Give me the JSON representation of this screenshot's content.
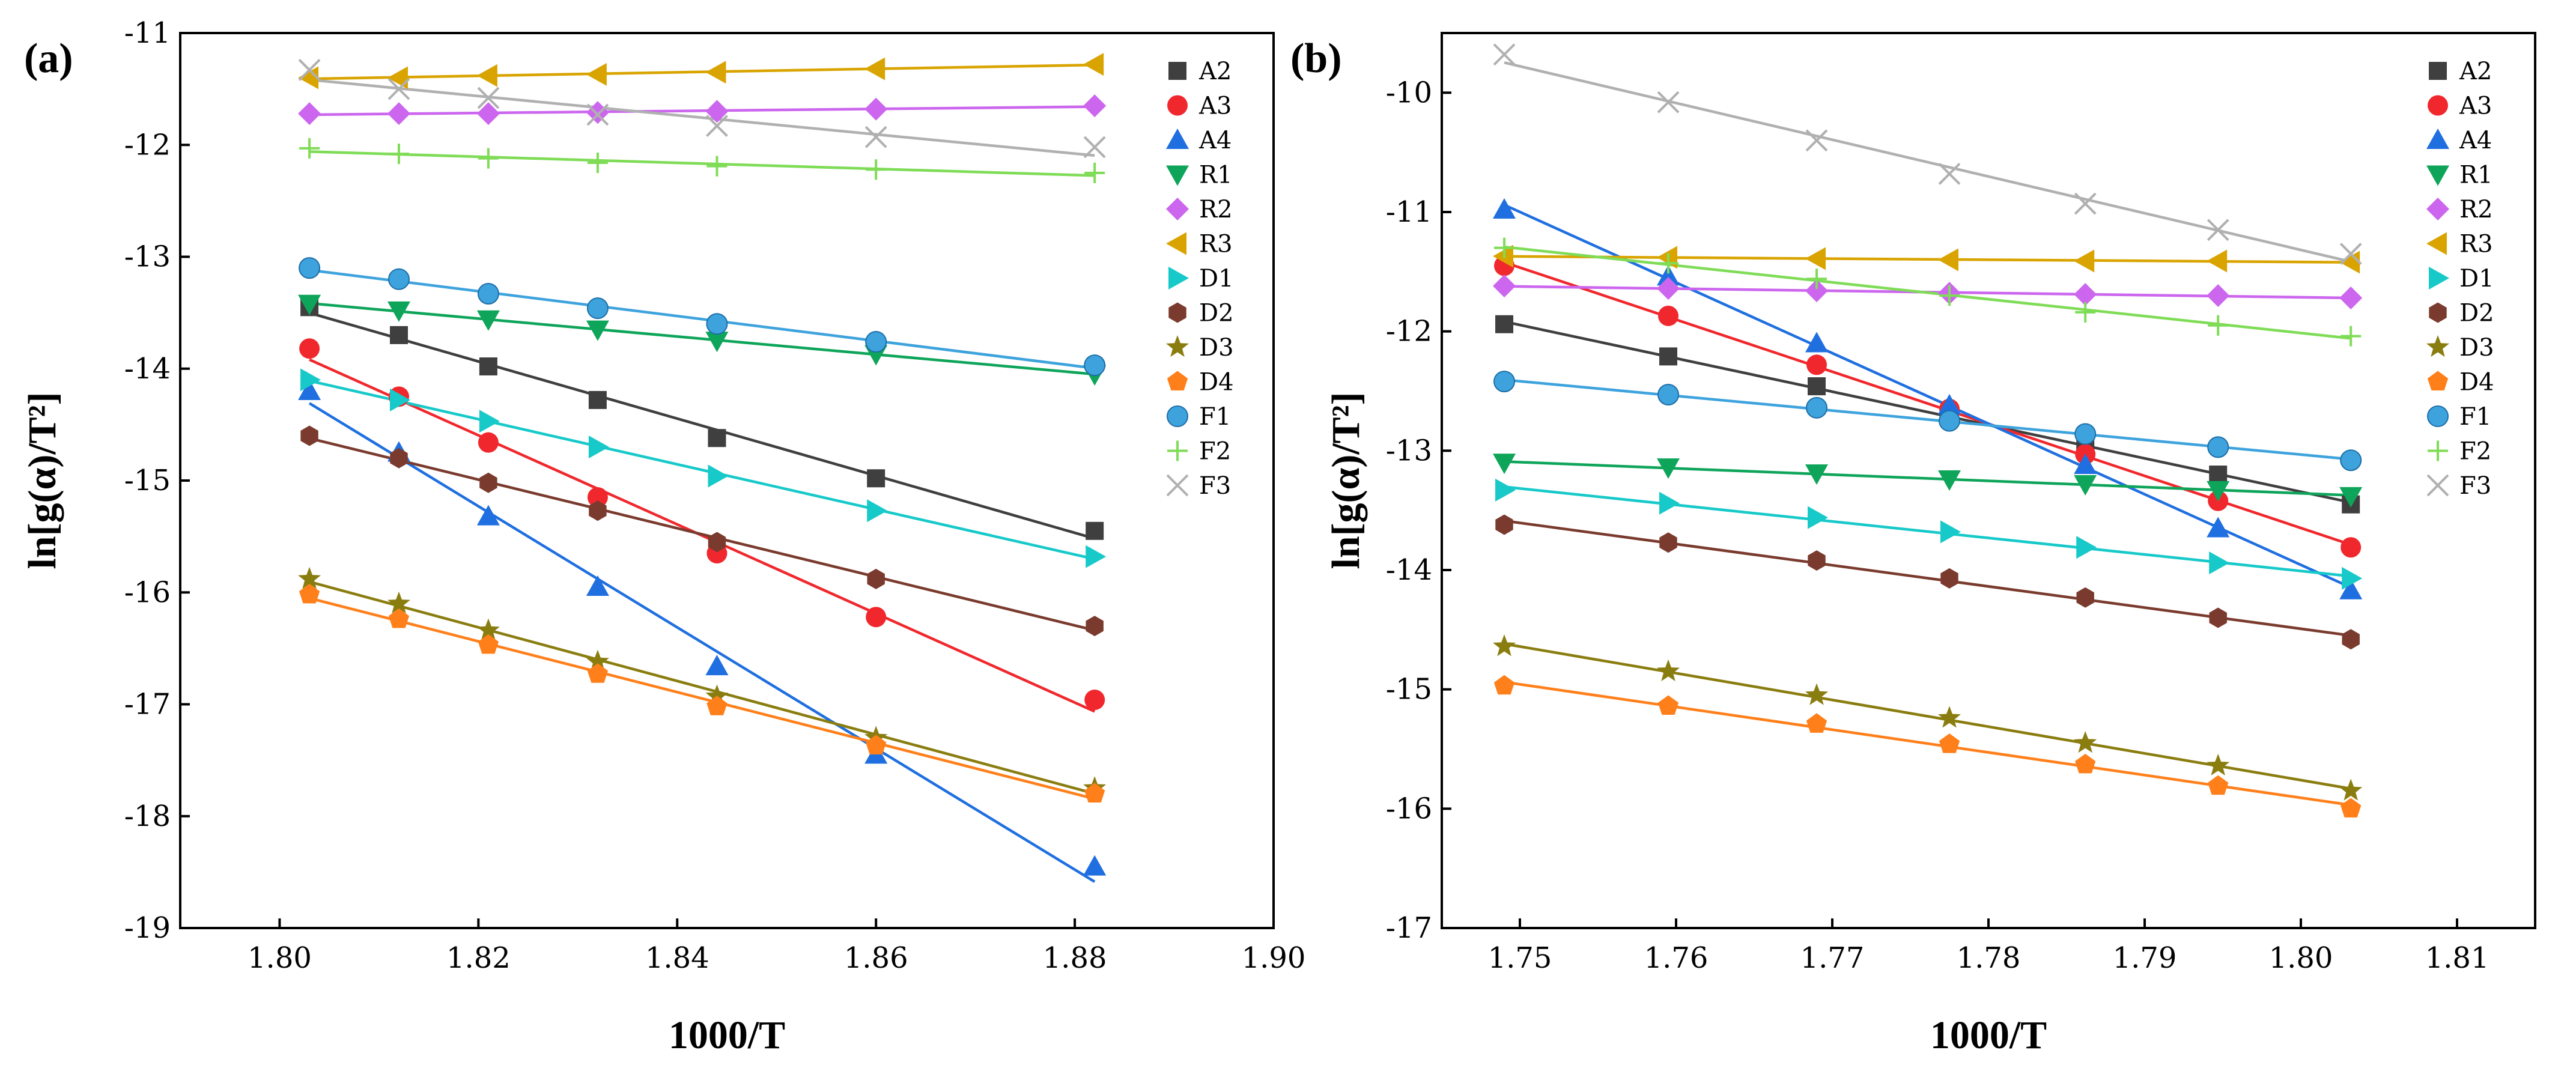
{
  "series_styles": {
    "A2": {
      "color": "#3f3f3f",
      "marker": "square"
    },
    "A3": {
      "color": "#f0282d",
      "marker": "circle"
    },
    "A4": {
      "color": "#1f6fe0",
      "marker": "triangle-up"
    },
    "R1": {
      "color": "#0ea55a",
      "marker": "triangle-down"
    },
    "R2": {
      "color": "#cc66ee",
      "marker": "diamond"
    },
    "R3": {
      "color": "#d9a400",
      "marker": "triangle-left"
    },
    "D1": {
      "color": "#17c9c9",
      "marker": "triangle-right"
    },
    "D2": {
      "color": "#7a3b2e",
      "marker": "hexagon"
    },
    "D3": {
      "color": "#8a7d10",
      "marker": "star"
    },
    "D4": {
      "color": "#ff7f1a",
      "marker": "pentagon"
    },
    "F1": {
      "color": "#3ea3dd",
      "marker": "sphere"
    },
    "F2": {
      "color": "#7fdc57",
      "marker": "plus"
    },
    "F3": {
      "color": "#b0b0b0",
      "marker": "cross"
    }
  },
  "chart_data": [
    {
      "type": "scatter",
      "panel_label": "(a)",
      "xlabel": "1000/T",
      "ylabel": "ln[g(α)/T²]",
      "xlim": [
        1.79,
        1.9
      ],
      "ylim": [
        -19,
        -11
      ],
      "xticks": [
        "1.80",
        "1.82",
        "1.84",
        "1.86",
        "1.88",
        "1.90"
      ],
      "yticks": [
        "-19",
        "-18",
        "-17",
        "-16",
        "-15",
        "-14",
        "-13",
        "-12",
        "-11"
      ],
      "legend_position": "top-right",
      "x": [
        1.803,
        1.812,
        1.821,
        1.832,
        1.844,
        1.86,
        1.882
      ],
      "series": [
        {
          "name": "A2",
          "values": [
            -13.45,
            -13.7,
            -13.98,
            -14.28,
            -14.62,
            -14.98,
            -15.45
          ]
        },
        {
          "name": "A3",
          "values": [
            -13.82,
            -14.25,
            -14.66,
            -15.15,
            -15.65,
            -16.22,
            -16.96
          ]
        },
        {
          "name": "A4",
          "values": [
            -14.2,
            -14.75,
            -15.32,
            -15.95,
            -16.66,
            -17.45,
            -18.45
          ]
        },
        {
          "name": "R1",
          "values": [
            -13.42,
            -13.48,
            -13.56,
            -13.65,
            -13.75,
            -13.87,
            -14.05
          ]
        },
        {
          "name": "R2",
          "values": [
            -11.72,
            -11.72,
            -11.72,
            -11.71,
            -11.7,
            -11.68,
            -11.65
          ]
        },
        {
          "name": "R3",
          "values": [
            -11.4,
            -11.4,
            -11.38,
            -11.37,
            -11.35,
            -11.32,
            -11.28
          ]
        },
        {
          "name": "D1",
          "values": [
            -14.1,
            -14.28,
            -14.47,
            -14.7,
            -14.96,
            -15.27,
            -15.68
          ]
        },
        {
          "name": "D2",
          "values": [
            -14.6,
            -14.8,
            -15.02,
            -15.27,
            -15.55,
            -15.88,
            -16.3
          ]
        },
        {
          "name": "D3",
          "values": [
            -15.88,
            -16.1,
            -16.34,
            -16.62,
            -16.93,
            -17.3,
            -17.75
          ]
        },
        {
          "name": "D4",
          "values": [
            -16.02,
            -16.24,
            -16.47,
            -16.73,
            -17.02,
            -17.37,
            -17.8
          ]
        },
        {
          "name": "F1",
          "values": [
            -13.1,
            -13.2,
            -13.33,
            -13.46,
            -13.6,
            -13.76,
            -13.97
          ]
        },
        {
          "name": "F2",
          "values": [
            -12.03,
            -12.08,
            -12.12,
            -12.16,
            -12.19,
            -12.22,
            -12.25
          ]
        },
        {
          "name": "F3",
          "values": [
            -11.33,
            -11.5,
            -11.58,
            -11.73,
            -11.83,
            -11.93,
            -12.02
          ]
        }
      ]
    },
    {
      "type": "scatter",
      "panel_label": "(b)",
      "xlabel": "1000/T",
      "ylabel": "ln[g(α)/T²]",
      "xlim": [
        1.745,
        1.815
      ],
      "ylim": [
        -17,
        -9.5
      ],
      "xticks": [
        "1.75",
        "1.76",
        "1.77",
        "1.78",
        "1.79",
        "1.80",
        "1.81"
      ],
      "yticks": [
        "-17",
        "-16",
        "-15",
        "-14",
        "-13",
        "-12",
        "-11",
        "-10"
      ],
      "legend_position": "top-right",
      "x": [
        1.749,
        1.7595,
        1.769,
        1.7775,
        1.7862,
        1.7947,
        1.8032
      ],
      "series": [
        {
          "name": "A2",
          "values": [
            -11.94,
            -12.21,
            -12.46,
            -12.7,
            -12.95,
            -13.2,
            -13.45
          ]
        },
        {
          "name": "A3",
          "values": [
            -11.45,
            -11.87,
            -12.28,
            -12.65,
            -13.03,
            -13.42,
            -13.81
          ]
        },
        {
          "name": "A4",
          "values": [
            -10.98,
            -11.54,
            -12.1,
            -12.62,
            -13.12,
            -13.65,
            -14.17
          ]
        },
        {
          "name": "R1",
          "values": [
            -13.1,
            -13.14,
            -13.19,
            -13.24,
            -13.28,
            -13.33,
            -13.38
          ]
        },
        {
          "name": "R2",
          "values": [
            -11.62,
            -11.64,
            -11.66,
            -11.68,
            -11.69,
            -11.7,
            -11.72
          ]
        },
        {
          "name": "R3",
          "values": [
            -11.37,
            -11.38,
            -11.39,
            -11.4,
            -11.41,
            -11.41,
            -11.42
          ]
        },
        {
          "name": "D1",
          "values": [
            -13.33,
            -13.44,
            -13.56,
            -13.68,
            -13.81,
            -13.94,
            -14.07
          ]
        },
        {
          "name": "D2",
          "values": [
            -13.62,
            -13.77,
            -13.92,
            -14.07,
            -14.23,
            -14.4,
            -14.58
          ]
        },
        {
          "name": "D3",
          "values": [
            -14.64,
            -14.85,
            -15.05,
            -15.24,
            -15.45,
            -15.64,
            -15.85
          ]
        },
        {
          "name": "D4",
          "values": [
            -14.97,
            -15.14,
            -15.29,
            -15.46,
            -15.63,
            -15.81,
            -16.0
          ]
        },
        {
          "name": "F1",
          "values": [
            -12.42,
            -12.53,
            -12.64,
            -12.75,
            -12.86,
            -12.97,
            -13.08
          ]
        },
        {
          "name": "F2",
          "values": [
            -11.3,
            -11.43,
            -11.56,
            -11.7,
            -11.84,
            -11.95,
            -12.04
          ]
        },
        {
          "name": "F3",
          "values": [
            -9.68,
            -10.08,
            -10.4,
            -10.68,
            -10.93,
            -11.15,
            -11.35
          ]
        }
      ]
    }
  ]
}
